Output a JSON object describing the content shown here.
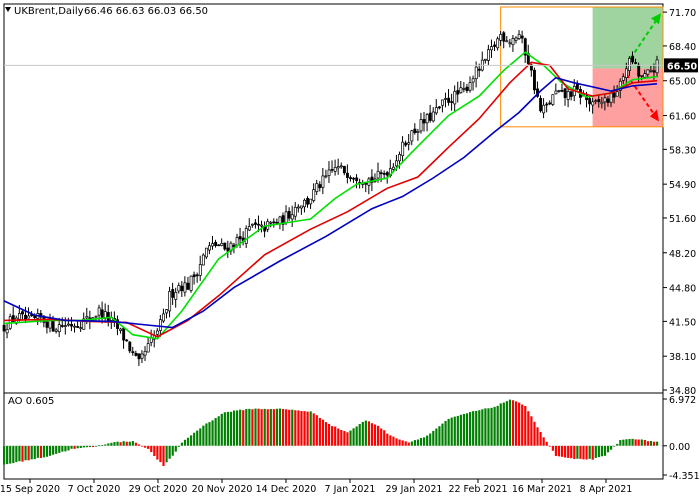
{
  "header": {
    "symbol_timeframe": "UKBrent,Daily",
    "ohlc": "66.46 66.63 66.03 66.50",
    "dropdown_icon": "triangle-down-icon"
  },
  "colors": {
    "ma_fast": "#00e000",
    "ma_mid": "#e00000",
    "ma_slow": "#0000c0",
    "candle": "#000000",
    "ao_up": "#008000",
    "ao_down": "#ff0000",
    "frame_orange": "#ff8c00",
    "target_up_fill": "#7fc47f",
    "target_down_fill": "#ff8080",
    "grid": "#c8c8c8",
    "current_price_bg": "#000000"
  },
  "chart_data": [
    {
      "type": "candlestick",
      "title": "UKBrent,Daily",
      "x_ticks": [
        "15 Sep 2020",
        "7 Oct 2020",
        "29 Oct 2020",
        "20 Nov 2020",
        "14 Dec 2020",
        "7 Jan 2021",
        "29 Jan 2021",
        "22 Feb 2021",
        "16 Mar 2021",
        "8 Apr 2021"
      ],
      "y_ticks": [
        "71.70",
        "68.40",
        "65.00",
        "61.60",
        "58.30",
        "54.90",
        "51.60",
        "48.20",
        "44.80",
        "41.50",
        "38.10",
        "34.80"
      ],
      "ylim": [
        34.8,
        72.2
      ],
      "current_price": "66.50",
      "close_path": [
        [
          0,
          41.0
        ],
        [
          4,
          42.0
        ],
        [
          8,
          41.5
        ],
        [
          12,
          41.8
        ],
        [
          16,
          41.0
        ],
        [
          20,
          41.2
        ],
        [
          24,
          41.3
        ],
        [
          28,
          41.8
        ],
        [
          31,
          42.5
        ],
        [
          34,
          41.8
        ],
        [
          37,
          40.8
        ],
        [
          40,
          39.5
        ],
        [
          42,
          38.2
        ],
        [
          44,
          37.3
        ],
        [
          46,
          38.5
        ],
        [
          49,
          40.0
        ],
        [
          52,
          41.8
        ],
        [
          54,
          44.0
        ],
        [
          57,
          45.0
        ],
        [
          60,
          45.0
        ],
        [
          63,
          46.5
        ],
        [
          66,
          48.5
        ],
        [
          69,
          49.0
        ],
        [
          72,
          48.6
        ],
        [
          75,
          49.2
        ],
        [
          78,
          49.8
        ],
        [
          81,
          50.8
        ],
        [
          84,
          50.5
        ],
        [
          87,
          51.0
        ],
        [
          90,
          51.2
        ],
        [
          93,
          52.0
        ],
        [
          96,
          53.0
        ],
        [
          99,
          53.2
        ],
        [
          102,
          54.5
        ],
        [
          105,
          55.5
        ],
        [
          108,
          56.5
        ],
        [
          111,
          56.2
        ],
        [
          114,
          55.8
        ],
        [
          117,
          55.5
        ],
        [
          120,
          55.3
        ],
        [
          123,
          55.8
        ],
        [
          126,
          56.5
        ],
        [
          129,
          58.0
        ],
        [
          132,
          59.5
        ],
        [
          135,
          60.5
        ],
        [
          138,
          61.2
        ],
        [
          141,
          62.0
        ],
        [
          144,
          63.0
        ],
        [
          147,
          63.5
        ],
        [
          150,
          64.0
        ],
        [
          153,
          65.5
        ],
        [
          156,
          66.5
        ],
        [
          159,
          68.0
        ],
        [
          162,
          69.5
        ],
        [
          165,
          69.0
        ],
        [
          168,
          69.5
        ],
        [
          171,
          67.0
        ],
        [
          173,
          64.5
        ],
        [
          175,
          62.0
        ],
        [
          177,
          62.5
        ],
        [
          180,
          63.8
        ],
        [
          183,
          63.5
        ],
        [
          186,
          64.0
        ],
        [
          189,
          63.5
        ],
        [
          192,
          62.5
        ],
        [
          195,
          63.0
        ],
        [
          198,
          63.3
        ],
        [
          201,
          64.5
        ],
        [
          203,
          66.5
        ],
        [
          205,
          67.0
        ],
        [
          207,
          65.5
        ],
        [
          209,
          65.3
        ],
        [
          211,
          66.0
        ],
        [
          213,
          66.5
        ]
      ],
      "series": [
        {
          "name": "",
          "color_key": "ma_fast",
          "points": [
            [
              0,
              41.3
            ],
            [
              15,
              41.6
            ],
            [
              25,
              41.6
            ],
            [
              35,
              41.9
            ],
            [
              42,
              40.2
            ],
            [
              50,
              39.8
            ],
            [
              58,
              42.5
            ],
            [
              70,
              47.6
            ],
            [
              85,
              50.8
            ],
            [
              100,
              51.5
            ],
            [
              108,
              53.5
            ],
            [
              115,
              54.9
            ],
            [
              125,
              55.5
            ],
            [
              133,
              58.0
            ],
            [
              145,
              61.6
            ],
            [
              155,
              63.5
            ],
            [
              163,
              66.0
            ],
            [
              170,
              67.8
            ],
            [
              176,
              66.5
            ],
            [
              182,
              64.8
            ],
            [
              190,
              63.4
            ],
            [
              198,
              63.8
            ],
            [
              205,
              65.1
            ],
            [
              213,
              65.4
            ]
          ]
        },
        {
          "name": "",
          "color_key": "ma_mid",
          "points": [
            [
              0,
              41.6
            ],
            [
              15,
              41.7
            ],
            [
              28,
              41.5
            ],
            [
              40,
              41.4
            ],
            [
              50,
              40.0
            ],
            [
              60,
              41.6
            ],
            [
              70,
              44.0
            ],
            [
              85,
              48.0
            ],
            [
              100,
              50.5
            ],
            [
              112,
              52.2
            ],
            [
              125,
              54.5
            ],
            [
              135,
              55.6
            ],
            [
              145,
              58.5
            ],
            [
              155,
              61.3
            ],
            [
              165,
              64.8
            ],
            [
              172,
              66.8
            ],
            [
              178,
              66.5
            ],
            [
              184,
              64.2
            ],
            [
              192,
              63.5
            ],
            [
              198,
              63.8
            ],
            [
              205,
              64.8
            ],
            [
              213,
              65.0
            ]
          ]
        },
        {
          "name": "",
          "color_key": "ma_slow",
          "points": [
            [
              0,
              43.5
            ],
            [
              10,
              42.1
            ],
            [
              20,
              41.6
            ],
            [
              35,
              41.5
            ],
            [
              45,
              41.2
            ],
            [
              55,
              40.9
            ],
            [
              65,
              42.5
            ],
            [
              75,
              44.8
            ],
            [
              90,
              47.4
            ],
            [
              105,
              49.8
            ],
            [
              120,
              52.5
            ],
            [
              130,
              53.7
            ],
            [
              140,
              55.5
            ],
            [
              150,
              57.5
            ],
            [
              160,
              60.0
            ],
            [
              168,
              61.9
            ],
            [
              175,
              64.0
            ],
            [
              180,
              65.3
            ],
            [
              186,
              64.8
            ],
            [
              192,
              64.4
            ],
            [
              198,
              64.0
            ],
            [
              205,
              64.5
            ],
            [
              213,
              64.7
            ]
          ]
        }
      ],
      "trade_frame": {
        "x_start": 162,
        "x_end": 213,
        "y_top": 72.2,
        "y_bottom": 60.5,
        "entry": 66.2,
        "target_up": 71.0,
        "target_down": 61.6
      }
    },
    {
      "type": "bar",
      "title": "AO 0.605",
      "y_ticks": [
        "6.972",
        "0.00",
        "-4.351"
      ],
      "ylim": [
        -4.351,
        6.972
      ],
      "bars_path": [
        [
          0,
          -2.8
        ],
        [
          14,
          -1.6
        ],
        [
          22,
          -0.5
        ],
        [
          30,
          -0.1
        ],
        [
          35,
          0.5
        ],
        [
          42,
          0.7
        ],
        [
          47,
          -0.5
        ],
        [
          52,
          -3.0
        ],
        [
          55,
          -1.5
        ],
        [
          58,
          0.5
        ],
        [
          65,
          3.0
        ],
        [
          72,
          5.0
        ],
        [
          80,
          5.5
        ],
        [
          90,
          5.5
        ],
        [
          100,
          5.1
        ],
        [
          107,
          3.0
        ],
        [
          112,
          2.0
        ],
        [
          118,
          3.8
        ],
        [
          122,
          3.0
        ],
        [
          126,
          1.5
        ],
        [
          132,
          0.5
        ],
        [
          138,
          1.5
        ],
        [
          145,
          4.0
        ],
        [
          152,
          5.0
        ],
        [
          160,
          5.8
        ],
        [
          165,
          6.9
        ],
        [
          170,
          6.0
        ],
        [
          175,
          2.0
        ],
        [
          180,
          -1.5
        ],
        [
          186,
          -2.0
        ],
        [
          192,
          -2.0
        ],
        [
          196,
          -1.5
        ],
        [
          201,
          0.8
        ],
        [
          205,
          1.1
        ],
        [
          209,
          0.8
        ],
        [
          213,
          0.6
        ]
      ]
    }
  ],
  "ao_value": "0.605"
}
